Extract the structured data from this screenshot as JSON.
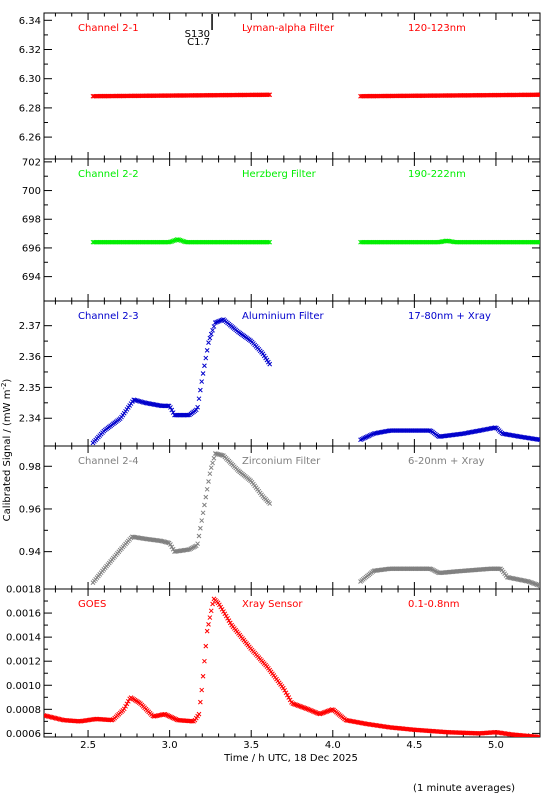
{
  "figure": {
    "ylabel": "Calibrated Signal / (mW m",
    "ylabel_sup": "-2",
    "ylabel_close": ")",
    "xlabel": "Time / h UTC, 18 Dec 2025",
    "footnote": "(1 minute averages)",
    "flare_marker": {
      "time": 3.26,
      "labels": [
        "S130",
        "C1.7"
      ]
    },
    "xlim": [
      2.23,
      5.27
    ],
    "xticks": [
      2.5,
      3.0,
      3.5,
      4.0,
      4.5,
      5.0
    ],
    "xticklabels": [
      "2.5",
      "3.0",
      "3.5",
      "4.0",
      "4.5",
      "5.0"
    ]
  },
  "chart_data": [
    {
      "type": "scatter",
      "marker": "x",
      "channel": "Channel 2-1",
      "filter": "Lyman-alpha Filter",
      "band": "120-123nm",
      "color": "#ff0000",
      "ylim": [
        6.245,
        6.345
      ],
      "yticks": [
        6.26,
        6.28,
        6.3,
        6.32,
        6.34
      ],
      "yticklabels": [
        "6.26",
        "6.28",
        "6.30",
        "6.32",
        "6.34"
      ],
      "series": [
        {
          "shape": [
            [
              2.53,
              6.288
            ],
            [
              3.62,
              6.289
            ],
            [
              4.17,
              6.288
            ],
            [
              5.27,
              6.289
            ]
          ],
          "segments": [
            [
              2.53,
              3.62
            ],
            [
              4.17,
              5.27
            ]
          ]
        }
      ]
    },
    {
      "type": "scatter",
      "marker": "x",
      "channel": "Channel 2-2",
      "filter": "Herzberg Filter",
      "band": "190-222nm",
      "color": "#00ee00",
      "ylim": [
        692.3,
        702.2
      ],
      "yticks": [
        694,
        696,
        698,
        700,
        702
      ],
      "yticklabels": [
        "694",
        "696",
        "698",
        "700",
        "702"
      ],
      "series": [
        {
          "shape": [
            [
              2.53,
              696.4
            ],
            [
              3.0,
              696.4
            ],
            [
              3.05,
              696.6
            ],
            [
              3.1,
              696.4
            ],
            [
              3.62,
              696.4
            ],
            [
              4.17,
              696.4
            ],
            [
              4.65,
              696.4
            ],
            [
              4.7,
              696.5
            ],
            [
              4.75,
              696.4
            ],
            [
              5.27,
              696.4
            ]
          ],
          "segments": [
            [
              2.53,
              3.62
            ],
            [
              4.17,
              5.27
            ]
          ]
        }
      ]
    },
    {
      "type": "scatter",
      "marker": "x",
      "channel": "Channel 2-3",
      "filter": "Aluminium Filter",
      "band": "17-80nm + Xray",
      "color": "#0000cc",
      "ylim": [
        2.331,
        2.378
      ],
      "yticks": [
        2.34,
        2.35,
        2.36,
        2.37
      ],
      "yticklabels": [
        "2.34",
        "2.35",
        "2.36",
        "2.37"
      ],
      "series": [
        {
          "shape": [
            [
              2.53,
              2.332
            ],
            [
              2.6,
              2.336
            ],
            [
              2.7,
              2.34
            ],
            [
              2.78,
              2.346
            ],
            [
              2.85,
              2.345
            ],
            [
              2.95,
              2.344
            ],
            [
              3.0,
              2.344
            ],
            [
              3.03,
              2.341
            ],
            [
              3.12,
              2.341
            ],
            [
              3.17,
              2.343
            ],
            [
              3.2,
              2.353
            ],
            [
              3.24,
              2.365
            ],
            [
              3.28,
              2.371
            ],
            [
              3.33,
              2.372
            ],
            [
              3.42,
              2.368
            ],
            [
              3.5,
              2.365
            ],
            [
              3.57,
              2.361
            ],
            [
              3.62,
              2.357
            ],
            [
              4.17,
              2.333
            ],
            [
              4.25,
              2.335
            ],
            [
              4.35,
              2.336
            ],
            [
              4.45,
              2.336
            ],
            [
              4.6,
              2.336
            ],
            [
              4.65,
              2.334
            ],
            [
              4.8,
              2.335
            ],
            [
              5.0,
              2.337
            ],
            [
              5.04,
              2.335
            ],
            [
              5.15,
              2.334
            ],
            [
              5.27,
              2.333
            ]
          ],
          "segments": [
            [
              2.53,
              3.62
            ],
            [
              4.17,
              5.27
            ]
          ]
        }
      ]
    },
    {
      "type": "scatter",
      "marker": "x",
      "channel": "Channel 2-4",
      "filter": "Zirconium Filter",
      "band": "6-20nm + Xray",
      "color": "#808080",
      "ylim": [
        0.9225,
        0.9895
      ],
      "yticks": [
        0.94,
        0.96,
        0.98
      ],
      "yticklabels": [
        "0.94",
        "0.96",
        "0.98"
      ],
      "series": [
        {
          "shape": [
            [
              2.53,
              0.9255
            ],
            [
              2.6,
              0.932
            ],
            [
              2.7,
              0.941
            ],
            [
              2.77,
              0.947
            ],
            [
              2.85,
              0.946
            ],
            [
              2.95,
              0.945
            ],
            [
              3.0,
              0.944
            ],
            [
              3.03,
              0.94
            ],
            [
              3.12,
              0.941
            ],
            [
              3.17,
              0.943
            ],
            [
              3.2,
              0.956
            ],
            [
              3.25,
              0.978
            ],
            [
              3.28,
              0.986
            ],
            [
              3.33,
              0.985
            ],
            [
              3.42,
              0.978
            ],
            [
              3.5,
              0.973
            ],
            [
              3.57,
              0.966
            ],
            [
              3.62,
              0.962
            ],
            [
              4.17,
              0.926
            ],
            [
              4.25,
              0.931
            ],
            [
              4.35,
              0.932
            ],
            [
              4.45,
              0.932
            ],
            [
              4.6,
              0.932
            ],
            [
              4.65,
              0.93
            ],
            [
              4.8,
              0.931
            ],
            [
              4.97,
              0.932
            ],
            [
              5.03,
              0.932
            ],
            [
              5.07,
              0.928
            ],
            [
              5.2,
              0.926
            ],
            [
              5.27,
              0.924
            ]
          ],
          "segments": [
            [
              2.53,
              3.62
            ],
            [
              4.17,
              5.27
            ]
          ]
        }
      ]
    },
    {
      "type": "scatter",
      "marker": "x",
      "channel": "GOES",
      "filter": "Xray Sensor",
      "band": "0.1-0.8nm",
      "color": "#ff0000",
      "ylim": [
        0.00057,
        0.0018
      ],
      "yticks": [
        0.0006,
        0.0008,
        0.001,
        0.0012,
        0.0014,
        0.0016,
        0.0018
      ],
      "yticklabels": [
        "0.0006",
        "0.0008",
        "0.0010",
        "0.0012",
        "0.0014",
        "0.0016",
        "0.0018"
      ],
      "series": [
        {
          "shape": [
            [
              2.23,
              0.00075
            ],
            [
              2.35,
              0.00071
            ],
            [
              2.45,
              0.0007
            ],
            [
              2.55,
              0.00072
            ],
            [
              2.65,
              0.00071
            ],
            [
              2.72,
              0.0008
            ],
            [
              2.76,
              0.0009
            ],
            [
              2.82,
              0.00085
            ],
            [
              2.9,
              0.00074
            ],
            [
              2.97,
              0.00076
            ],
            [
              3.05,
              0.00071
            ],
            [
              3.15,
              0.0007
            ],
            [
              3.18,
              0.00076
            ],
            [
              3.2,
              0.001
            ],
            [
              3.23,
              0.00145
            ],
            [
              3.27,
              0.00172
            ],
            [
              3.3,
              0.00168
            ],
            [
              3.38,
              0.0015
            ],
            [
              3.5,
              0.0013
            ],
            [
              3.6,
              0.00115
            ],
            [
              3.7,
              0.00097
            ],
            [
              3.75,
              0.00085
            ],
            [
              3.85,
              0.0008
            ],
            [
              3.92,
              0.00076
            ],
            [
              4.0,
              0.0008
            ],
            [
              4.08,
              0.00071
            ],
            [
              4.2,
              0.00068
            ],
            [
              4.35,
              0.00065
            ],
            [
              4.5,
              0.00063
            ],
            [
              4.7,
              0.00061
            ],
            [
              4.9,
              0.0006
            ],
            [
              5.0,
              0.00061
            ],
            [
              5.1,
              0.00059
            ],
            [
              5.27,
              0.00057
            ]
          ],
          "segments": [
            [
              2.23,
              5.27
            ]
          ]
        }
      ]
    }
  ]
}
